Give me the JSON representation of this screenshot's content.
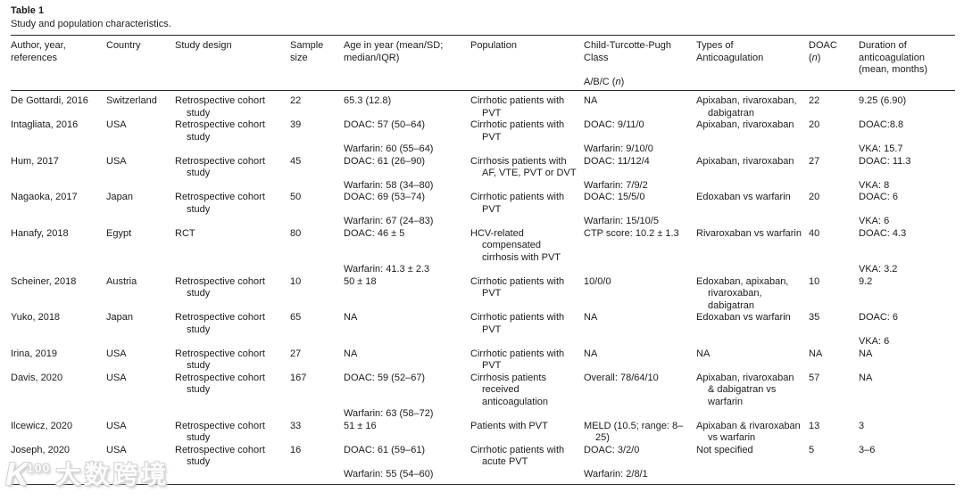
{
  "page": {
    "title": "Table 1",
    "subtitle": "Study and population characteristics."
  },
  "table": {
    "columns": [
      {
        "key": "author",
        "lines": [
          "Author, year,",
          "references"
        ]
      },
      {
        "key": "country",
        "lines": [
          "Country"
        ]
      },
      {
        "key": "study_design",
        "lines": [
          "Study design"
        ]
      },
      {
        "key": "sample_size",
        "lines": [
          "Sample",
          "size"
        ]
      },
      {
        "key": "age",
        "lines": [
          "Age in year (mean/SD;",
          "median/IQR)"
        ]
      },
      {
        "key": "population",
        "lines": [
          "Population"
        ]
      },
      {
        "key": "ctp_class",
        "lines": [
          "Child-Turcotte-Pugh",
          "Class",
          "",
          "A/B/C (n)"
        ]
      },
      {
        "key": "anticoagulation_types",
        "lines": [
          "Types of",
          "Anticoagulation"
        ]
      },
      {
        "key": "doac_n",
        "lines": [
          "DOAC",
          "(n)"
        ]
      },
      {
        "key": "duration",
        "lines": [
          "Duration of",
          "anticoagulation",
          "(mean, months)"
        ]
      }
    ],
    "rows": [
      {
        "cells": [
          [
            "De Gottardi, 2016"
          ],
          [
            "Switzerland"
          ],
          [
            "Retrospective cohort study"
          ],
          [
            "22"
          ],
          [
            "65.3 (12.8)"
          ],
          [
            "Cirrhotic patients with PVT"
          ],
          [
            "NA"
          ],
          [
            "Apixaban, rivaroxaban, dabigatran"
          ],
          [
            "22"
          ],
          [
            "9.25 (6.90)"
          ]
        ]
      },
      {
        "cells": [
          [
            "Intagliata, 2016"
          ],
          [
            "USA"
          ],
          [
            "Retrospective cohort study"
          ],
          [
            "39"
          ],
          [
            "DOAC: 57 (50–64)",
            "",
            "Warfarin: 60 (55–64)"
          ],
          [
            "Cirrhotic patients with PVT"
          ],
          [
            "DOAC: 9/11/0",
            "",
            "Warfarin: 9/10/0"
          ],
          [
            "Apixaban, rivaroxaban"
          ],
          [
            "20"
          ],
          [
            "DOAC:8.8",
            "",
            "VKA: 15.7"
          ]
        ]
      },
      {
        "cells": [
          [
            "Hum, 2017"
          ],
          [
            "USA"
          ],
          [
            "Retrospective cohort study"
          ],
          [
            "45"
          ],
          [
            "DOAC: 61 (26–90)",
            "",
            "Warfarin: 58 (34–80)"
          ],
          [
            "Cirrhosis patients with AF, VTE, PVT or DVT"
          ],
          [
            "DOAC: 11/12/4",
            "",
            "Warfarin: 7/9/2"
          ],
          [
            "Apixaban, rivaroxaban"
          ],
          [
            "27"
          ],
          [
            "DOAC: 11.3",
            "",
            "VKA: 8"
          ]
        ]
      },
      {
        "cells": [
          [
            "Nagaoka, 2017"
          ],
          [
            "Japan"
          ],
          [
            "Retrospective cohort study"
          ],
          [
            "50"
          ],
          [
            "DOAC: 69 (53–74)",
            "",
            "Warfarin: 67 (24–83)"
          ],
          [
            "Cirrhotic patients with PVT"
          ],
          [
            "DOAC: 15/5/0",
            "",
            "Warfarin: 15/10/5"
          ],
          [
            "Edoxaban vs warfarin"
          ],
          [
            "20"
          ],
          [
            "DOAC: 6",
            "",
            "VKA: 6"
          ]
        ]
      },
      {
        "cells": [
          [
            "Hanafy, 2018"
          ],
          [
            "Egypt"
          ],
          [
            "RCT"
          ],
          [
            "80"
          ],
          [
            "DOAC: 46 ± 5",
            "",
            "",
            "Warfarin: 41.3 ± 2.3"
          ],
          [
            "HCV-related compensated cirrhosis with PVT"
          ],
          [
            "CTP score: 10.2 ± 1.3"
          ],
          [
            "Rivaroxaban vs warfarin"
          ],
          [
            "40"
          ],
          [
            "DOAC: 4.3",
            "",
            "",
            "VKA: 3.2"
          ]
        ]
      },
      {
        "cells": [
          [
            "Scheiner, 2018"
          ],
          [
            "Austria"
          ],
          [
            "Retrospective cohort study"
          ],
          [
            "10"
          ],
          [
            "50 ± 18"
          ],
          [
            "Cirrhotic patients with PVT"
          ],
          [
            "10/0/0"
          ],
          [
            "Edoxaban, apixaban, rivaroxaban, dabigatran"
          ],
          [
            "10"
          ],
          [
            "9.2"
          ]
        ]
      },
      {
        "cells": [
          [
            "Yuko, 2018"
          ],
          [
            "Japan"
          ],
          [
            "Retrospective cohort study"
          ],
          [
            "65"
          ],
          [
            "NA"
          ],
          [
            "Cirrhotic patients with PVT"
          ],
          [
            "NA"
          ],
          [
            "Edoxaban vs warfarin"
          ],
          [
            "35"
          ],
          [
            "DOAC: 6",
            "",
            "VKA: 6"
          ]
        ]
      },
      {
        "cells": [
          [
            "Irina, 2019"
          ],
          [
            "USA"
          ],
          [
            "Retrospective cohort study"
          ],
          [
            "27"
          ],
          [
            "NA"
          ],
          [
            "Cirrhotic patients with PVT"
          ],
          [
            "NA"
          ],
          [
            "NA"
          ],
          [
            "NA"
          ],
          [
            "NA"
          ]
        ]
      },
      {
        "cells": [
          [
            "Davis, 2020"
          ],
          [
            "USA"
          ],
          [
            "Retrospective cohort study"
          ],
          [
            "167"
          ],
          [
            "DOAC: 59 (52–67)",
            "",
            "",
            "Warfarin: 63 (58–72)"
          ],
          [
            "Cirrhosis patients received anticoagulation"
          ],
          [
            "Overall: 78/64/10"
          ],
          [
            "Apixaban, rivaroxaban & dabigatran vs warfarin"
          ],
          [
            "57"
          ],
          [
            "NA"
          ]
        ]
      },
      {
        "cells": [
          [
            "Ilcewicz, 2020"
          ],
          [
            "USA"
          ],
          [
            "Retrospective cohort study"
          ],
          [
            "33"
          ],
          [
            "51 ± 16"
          ],
          [
            "Patients with PVT"
          ],
          [
            "MELD (10.5; range: 8–25)"
          ],
          [
            "Apixaban & rivaroxaban vs warfarin"
          ],
          [
            "13"
          ],
          [
            "3"
          ]
        ]
      },
      {
        "cells": [
          [
            "Joseph, 2020"
          ],
          [
            "USA"
          ],
          [
            "Retrospective cohort study"
          ],
          [
            "16"
          ],
          [
            "DOAC: 61 (59–61)",
            "",
            "Warfarin: 55 (54–60)"
          ],
          [
            "Cirrhotic patients with acute PVT"
          ],
          [
            "DOAC: 3/2/0",
            "",
            "Warfarin: 2/8/1"
          ],
          [
            "Not specified"
          ],
          [
            "5"
          ],
          [
            "3–6"
          ]
        ]
      }
    ]
  },
  "watermark": {
    "logo_letter": "K",
    "logo_number": "100",
    "text": "大数跨境"
  }
}
